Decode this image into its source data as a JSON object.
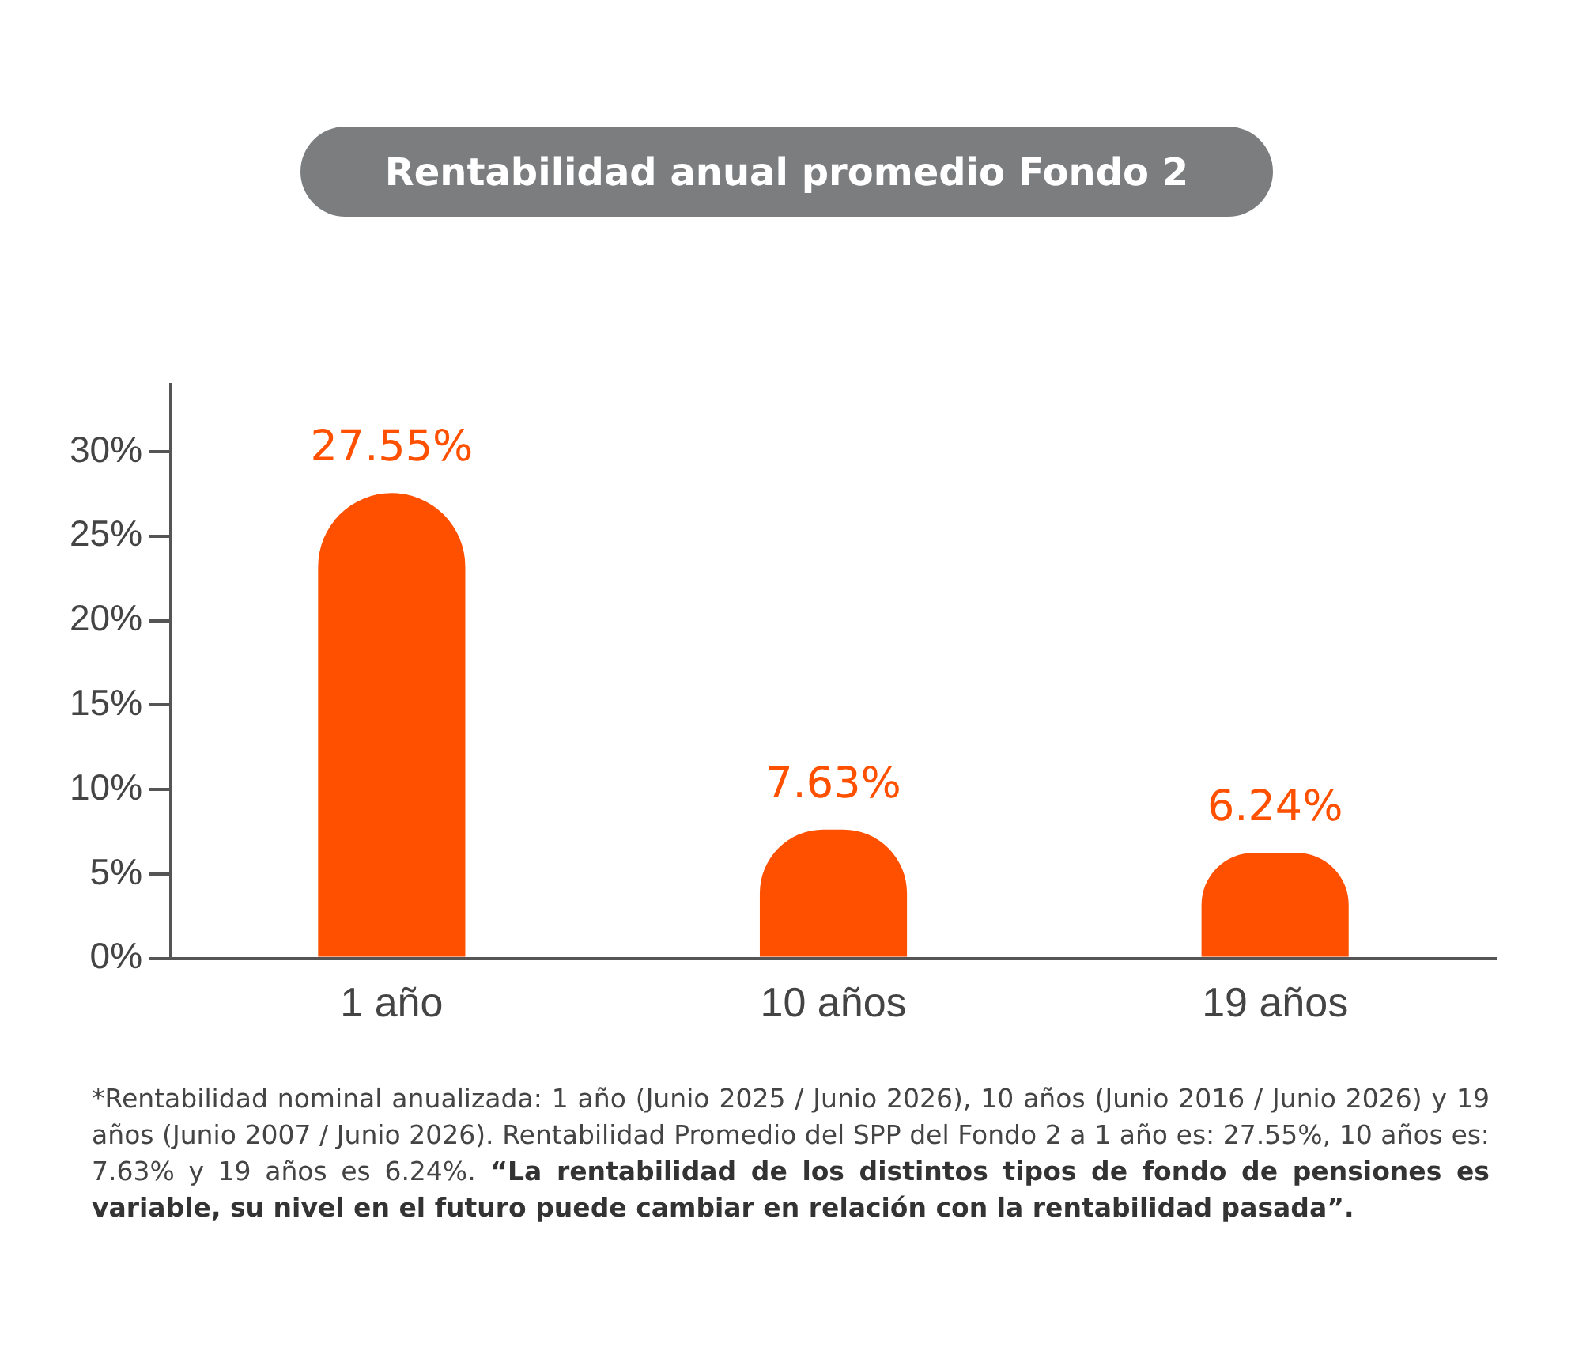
{
  "chart_data": {
    "type": "bar",
    "title": "Rentabilidad anual promedio Fondo 2",
    "categories": [
      "1 año",
      "10 años",
      "19 años"
    ],
    "values": [
      27.55,
      7.63,
      6.24
    ],
    "value_labels": [
      "27.55%",
      "7.63%",
      "6.24%"
    ],
    "color": "#ff5000",
    "ylim": [
      0,
      34
    ],
    "yticks": [
      {
        "value": 0,
        "label": "0%"
      },
      {
        "value": 5,
        "label": "5%"
      },
      {
        "value": 10,
        "label": "10%"
      },
      {
        "value": 15,
        "label": "15%"
      },
      {
        "value": 20,
        "label": "20%"
      },
      {
        "value": 25,
        "label": "25%"
      },
      {
        "value": 30,
        "label": "30%"
      }
    ],
    "annotations": [
      "*Rentabilidad nominal anualizada: 1 año (Junio 2025 / Junio 2026), 10 años (Junio 2016 / Junio 2026) y 19 años (Junio 2007 / Junio 2026). Rentabilidad Promedio del SPP del Fondo 2 a 1 año es: 27.55%, 10 años es: 7.63% y 19 años es 6.24%.",
      "“La rentabilidad de los distintos tipos de fondo de pensiones es variable, su nivel en el futuro puede cambiar en relación con la rentabilidad pasada”."
    ],
    "grid": false,
    "legend": false
  }
}
